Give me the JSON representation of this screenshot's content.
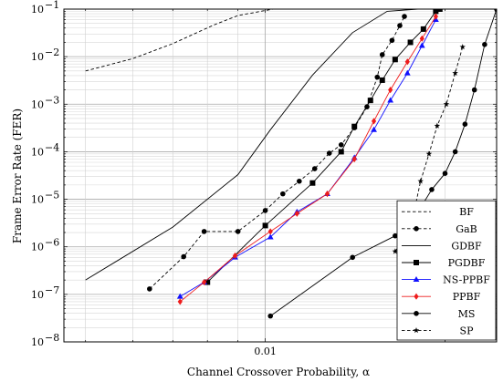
{
  "chart_data": {
    "type": "line",
    "xlabel": "Channel Crossover Probability, α",
    "ylabel": "Frame Error Rate (FER)",
    "xscale": "log",
    "yscale": "log",
    "xlim": [
      0.0046,
      0.0244
    ],
    "ylim": [
      1e-08,
      0.1
    ],
    "grid": true,
    "legend_position": "bottom-right",
    "x_tick_labels": [
      {
        "value": 0.01,
        "label": "0.01"
      }
    ],
    "y_tick_labels": [
      {
        "value": 1e-08,
        "label": "10",
        "exp": "−8"
      },
      {
        "value": 1e-07,
        "label": "10",
        "exp": "−7"
      },
      {
        "value": 1e-06,
        "label": "10",
        "exp": "−6"
      },
      {
        "value": 1e-05,
        "label": "10",
        "exp": "−5"
      },
      {
        "value": 0.0001,
        "label": "10",
        "exp": "−4"
      },
      {
        "value": 0.001,
        "label": "10",
        "exp": "−3"
      },
      {
        "value": 0.01,
        "label": "10",
        "exp": "−2"
      },
      {
        "value": 0.1,
        "label": "10",
        "exp": "−1"
      }
    ],
    "series": [
      {
        "name": "BF",
        "color": "#000000",
        "dash": "dashed",
        "marker": "none",
        "x": [
          0.005,
          0.006,
          0.007,
          0.0082,
          0.009,
          0.0103
        ],
        "y": [
          0.005,
          0.0091,
          0.0188,
          0.0464,
          0.0733,
          0.1
        ]
      },
      {
        "name": "GaB",
        "color": "#000000",
        "dash": "dashed",
        "marker": "circle",
        "x": [
          0.0064,
          0.0073,
          0.0079,
          0.009,
          0.01,
          0.0107,
          0.0114,
          0.0121,
          0.0128,
          0.0134,
          0.0141,
          0.0148,
          0.0154,
          0.0157,
          0.0163,
          0.0168,
          0.0171
        ],
        "y": [
          1.3e-07,
          6.2e-07,
          2.1e-06,
          2.1e-06,
          5.8e-06,
          1.3e-05,
          2.4e-05,
          4.4e-05,
          9.3e-05,
          0.00014,
          0.00032,
          0.00088,
          0.0037,
          0.011,
          0.022,
          0.045,
          0.07
        ]
      },
      {
        "name": "GDBF",
        "color": "#000000",
        "dash": "solid",
        "marker": "none",
        "x": [
          0.005,
          0.007,
          0.009,
          0.0102,
          0.012,
          0.014,
          0.016,
          0.018,
          0.019
        ],
        "y": [
          2e-07,
          2.6e-06,
          3.3e-05,
          0.00029,
          0.0041,
          0.032,
          0.09,
          0.1,
          0.1
        ]
      },
      {
        "name": "PGDBF",
        "color": "#000000",
        "dash": "solid",
        "marker": "square",
        "x": [
          0.008,
          0.01,
          0.012,
          0.0134,
          0.0141,
          0.015,
          0.0157,
          0.0165,
          0.0175,
          0.0184,
          0.0193,
          0.0196
        ],
        "y": [
          1.8e-07,
          2.8e-06,
          2.2e-05,
          0.0001,
          0.00034,
          0.0012,
          0.0032,
          0.0087,
          0.02,
          0.038,
          0.09,
          0.1
        ]
      },
      {
        "name": "NS-PPBF",
        "color": "#1010ff",
        "dash": "solid",
        "marker": "triangle",
        "x": [
          0.0072,
          0.0079,
          0.0089,
          0.0102,
          0.0113,
          0.0127,
          0.0141,
          0.0152,
          0.0162,
          0.0173,
          0.0183,
          0.0193
        ],
        "y": [
          9e-08,
          1.8e-07,
          6e-07,
          1.6e-06,
          5.4e-06,
          1.3e-05,
          7.5e-05,
          0.00029,
          0.0012,
          0.0045,
          0.017,
          0.06
        ]
      },
      {
        "name": "PPBF",
        "color": "#ee1c1c",
        "dash": "solid",
        "marker": "diamond",
        "x": [
          0.0072,
          0.0079,
          0.0089,
          0.0102,
          0.0113,
          0.0127,
          0.0141,
          0.0152,
          0.0162,
          0.0173,
          0.0183,
          0.0193
        ],
        "y": [
          7e-08,
          1.8e-07,
          6.5e-07,
          2.1e-06,
          5e-06,
          1.3e-05,
          7e-05,
          0.00044,
          0.002,
          0.0078,
          0.024,
          0.07
        ]
      },
      {
        "name": "MS",
        "color": "#000000",
        "dash": "solid",
        "marker": "circle",
        "x": [
          0.0102,
          0.014,
          0.0165,
          0.018,
          0.019,
          0.02,
          0.0208,
          0.0216,
          0.0224,
          0.0233,
          0.0244
        ],
        "y": [
          3.5e-08,
          6e-07,
          1.7e-06,
          5.3e-06,
          1.6e-05,
          3.5e-05,
          0.0001,
          0.00038,
          0.002,
          0.018,
          0.1
        ]
      },
      {
        "name": "SP",
        "color": "#000000",
        "dash": "dashed",
        "marker": "star",
        "x": [
          0.0165,
          0.0175,
          0.0182,
          0.0188,
          0.0194,
          0.0201,
          0.0208,
          0.0214
        ],
        "y": [
          8e-07,
          2.4e-06,
          2.4e-05,
          9e-05,
          0.00035,
          0.001,
          0.0045,
          0.016
        ]
      }
    ]
  }
}
